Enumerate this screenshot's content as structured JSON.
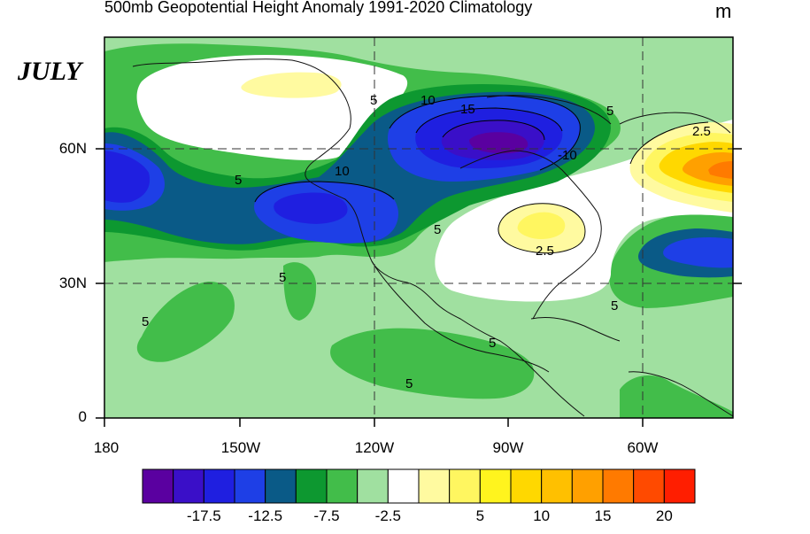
{
  "title": "500mb Geopotential Height Anomaly  1991-2020 Climatology",
  "units": "m",
  "month": "JULY",
  "lat_labels": [
    "60N",
    "30N",
    "0"
  ],
  "lon_labels": [
    "180",
    "150W",
    "120W",
    "90W",
    "60W"
  ],
  "contour_labels": [
    "5",
    "10",
    "15",
    "-10",
    "5",
    "5",
    "5",
    "5",
    "2.5",
    "2.5",
    "5",
    "5",
    "5",
    "5",
    "10"
  ],
  "colorbar": {
    "colors": [
      "#5a00a0",
      "#3a0fc8",
      "#1f1fe0",
      "#1e3fe6",
      "#0a5a87",
      "#0d9830",
      "#42bd4a",
      "#a0e0a0",
      "#ffffff",
      "#fffaa0",
      "#fff660",
      "#fff41e",
      "#ffd800",
      "#ffc000",
      "#ffa000",
      "#ff7a00",
      "#ff4a00",
      "#ff1e00"
    ],
    "tick_labels": [
      "-17.5",
      "-12.5",
      "-7.5",
      "-2.5",
      "5",
      "10",
      "15",
      "20"
    ]
  }
}
